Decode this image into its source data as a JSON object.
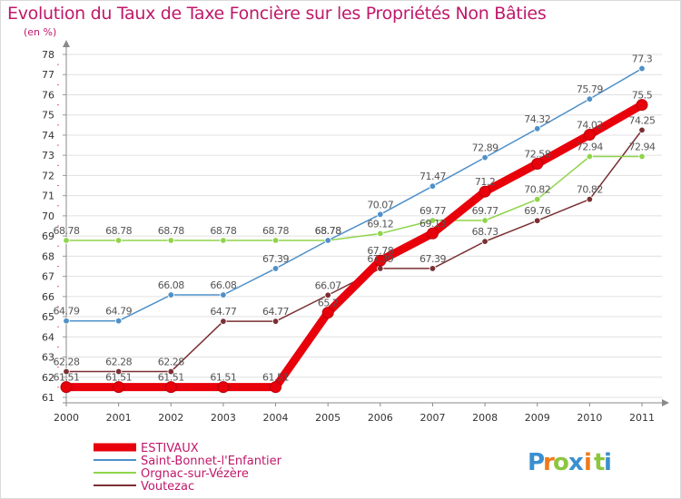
{
  "title": "Evolution du Taux de Taxe Foncière sur les Propriétés Non Bâties",
  "subtitle": "(en %)",
  "brand": {
    "letters": [
      "P",
      "r",
      "o",
      "x",
      "i",
      "t",
      "i"
    ],
    "colors": [
      "#3a8fd0",
      "#f07a1a",
      "#8cc63f",
      "#3a8fd0",
      "#f07a1a",
      "#8cc63f",
      "#3a8fd0"
    ]
  },
  "chart_data": {
    "type": "line",
    "title": "Evolution du Taux de Taxe Foncière sur les Propriétés Non Bâties",
    "ylabel": "(en %)",
    "xlabel": "",
    "ylim": [
      61,
      78
    ],
    "yticks": [
      61,
      62,
      63,
      64,
      65,
      66,
      67,
      68,
      69,
      70,
      71,
      72,
      73,
      74,
      75,
      76,
      77,
      78
    ],
    "x": [
      "2000",
      "2001",
      "2002",
      "2003",
      "2004",
      "2005",
      "2006",
      "2007",
      "2008",
      "2009",
      "2010",
      "2011"
    ],
    "grid": "horizontal",
    "legend": "bottom-left",
    "series": [
      {
        "name": "ESTIVAUX",
        "color": "#e8000b",
        "values": [
          61.51,
          61.51,
          61.51,
          61.51,
          61.51,
          65.2,
          67.78,
          69.13,
          71.2,
          72.58,
          74.02,
          75.5
        ],
        "labels": [
          "61.51",
          "61.51",
          "61.51",
          "61.51",
          "61.51",
          "65.2",
          "67.78",
          "69.13",
          "71.2",
          "72.58",
          "74.02",
          "75.5"
        ]
      },
      {
        "name": "Saint-Bonnet-l'Enfantier",
        "color": "#4f90c8",
        "values": [
          64.79,
          64.79,
          66.08,
          66.08,
          67.39,
          68.78,
          70.07,
          71.47,
          72.89,
          74.32,
          75.79,
          77.3
        ],
        "labels": [
          "64.79",
          "64.79",
          "66.08",
          "66.08",
          "67.39",
          "68.78",
          "70.07",
          "71.47",
          "72.89",
          "74.32",
          "75.79",
          "77.3"
        ]
      },
      {
        "name": "Orgnac-sur-Vézère",
        "color": "#8fd44a",
        "values": [
          68.78,
          68.78,
          68.78,
          68.78,
          68.78,
          68.78,
          69.12,
          69.77,
          69.77,
          70.82,
          72.94,
          72.94
        ],
        "labels": [
          "68.78",
          "68.78",
          "68.78",
          "68.78",
          "68.78",
          "68.78",
          "69.12",
          "69.77",
          "69.77",
          "70.82",
          "72.94",
          "72.94"
        ]
      },
      {
        "name": "Voutezac",
        "color": "#7a2f33",
        "values": [
          62.28,
          62.28,
          62.28,
          64.77,
          64.77,
          66.07,
          67.39,
          67.39,
          68.73,
          69.76,
          70.82,
          74.25
        ],
        "labels": [
          "62.28",
          "62.28",
          "62.28",
          "64.77",
          "64.77",
          "66.07",
          "67.39",
          "67.39",
          "68.73",
          "69.76",
          "70.82",
          "74.25"
        ]
      }
    ]
  }
}
